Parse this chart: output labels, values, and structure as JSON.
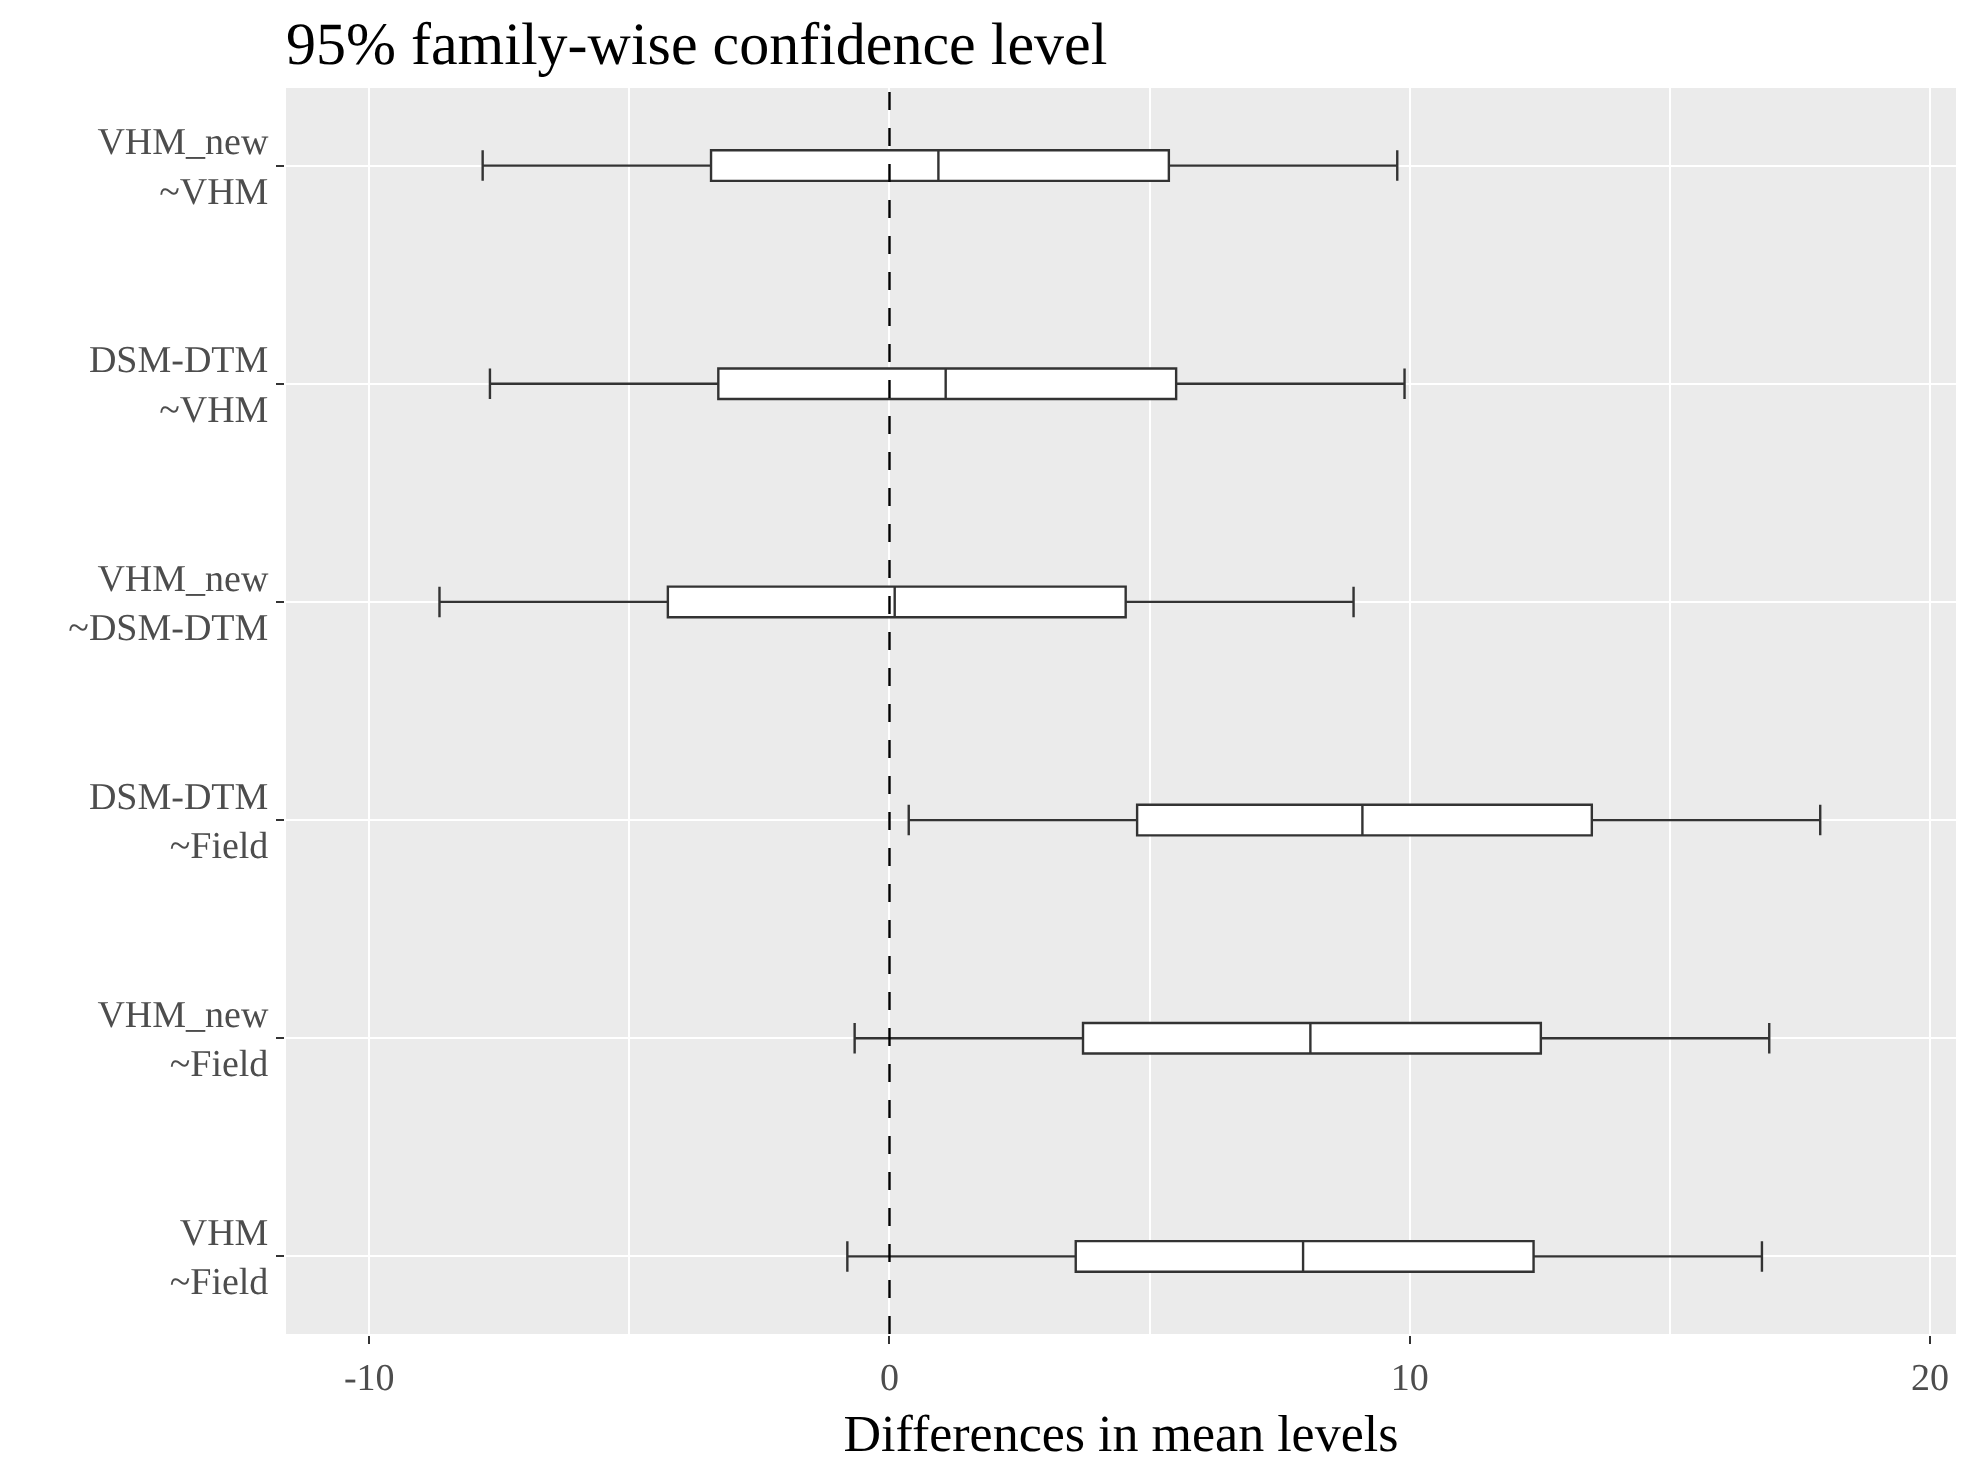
{
  "chart_data": {
    "type": "box",
    "orientation": "horizontal",
    "title": "95% family-wise confidence level",
    "xlabel": "Differences in mean levels",
    "categories": [
      "VHM_new\n~VHM",
      "DSM-DTM\n~VHM",
      "VHM_new\n~DSM-DTM",
      "DSM-DTM\n~Field",
      "VHM_new\n~Field",
      "VHM\n~Field"
    ],
    "color": "#333333",
    "boxes": [
      {
        "low": -7.82,
        "q1": -3.43,
        "median": 0.94,
        "q3": 5.37,
        "high": 9.76
      },
      {
        "low": -7.68,
        "q1": -3.29,
        "median": 1.08,
        "q3": 5.51,
        "high": 9.9
      },
      {
        "low": -8.65,
        "q1": -4.26,
        "median": 0.1,
        "q3": 4.54,
        "high": 8.92
      },
      {
        "low": 0.37,
        "q1": 4.76,
        "median": 9.09,
        "q3": 13.5,
        "high": 17.89
      },
      {
        "low": -0.67,
        "q1": 3.72,
        "median": 8.09,
        "q3": 12.52,
        "high": 16.91
      },
      {
        "low": -0.81,
        "q1": 3.58,
        "median": 7.95,
        "q3": 12.38,
        "high": 16.77
      }
    ],
    "xlim": [
      -11.6,
      20.5
    ],
    "xticks": [
      -10,
      0,
      10,
      20
    ],
    "ref_lines": [
      {
        "axis": "x",
        "value": 0,
        "line_style": "dashed",
        "color": "#000000"
      }
    ],
    "grid": true
  }
}
